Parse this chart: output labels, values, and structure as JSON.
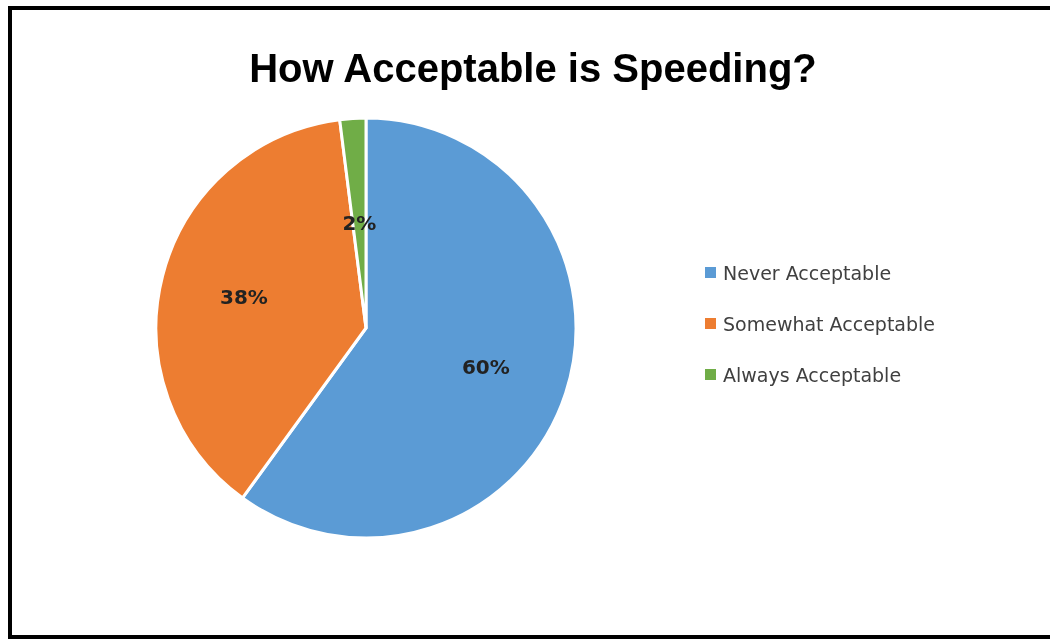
{
  "chart_data": {
    "type": "pie",
    "title": "How Acceptable is Speeding?",
    "categories": [
      "Never Acceptable",
      "Somewhat Acceptable",
      "Always Acceptable"
    ],
    "values": [
      60,
      38,
      2
    ],
    "value_labels": [
      "60%",
      "38%",
      "2%"
    ],
    "colors": [
      "#5b9bd5",
      "#ed7d31",
      "#70ad47"
    ],
    "legend": "right"
  }
}
